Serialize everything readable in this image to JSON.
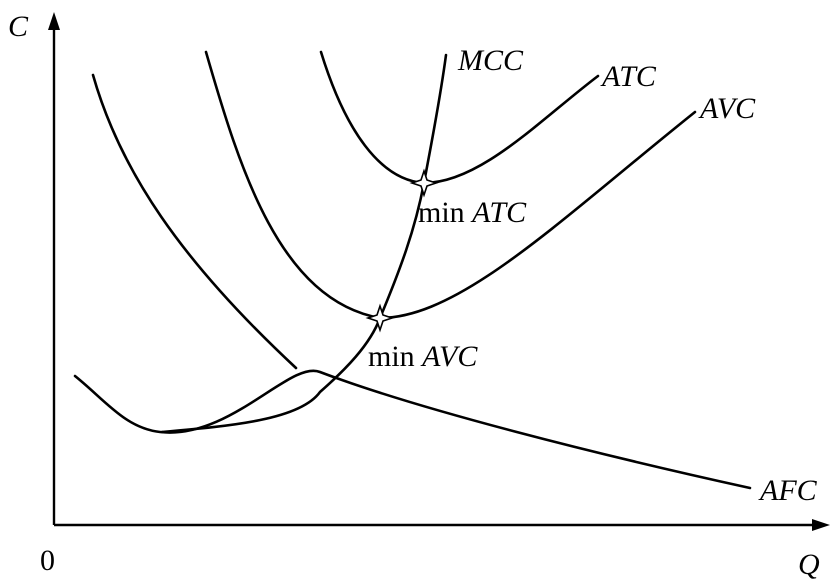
{
  "axes": {
    "y_label": "C",
    "x_label": "Q",
    "origin_label": "0"
  },
  "curves": {
    "mcc": "MCC",
    "atc": "ATC",
    "avc": "AVC",
    "afc": "AFC"
  },
  "points": {
    "min_atc": {
      "prefix": "min",
      "name": "ATC"
    },
    "min_avc": {
      "prefix": "min",
      "name": "AVC"
    }
  },
  "colors": {
    "ink": "#000000",
    "background": "#ffffff"
  }
}
